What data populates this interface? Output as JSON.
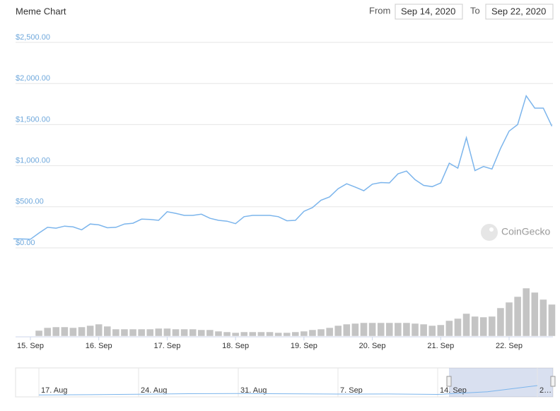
{
  "range_selector": {
    "from_label": "From",
    "from_value": "Sep 14, 2020",
    "to_label": "To",
    "to_value": "Sep 22, 2020"
  },
  "watermark": "CoinGecko",
  "chart_data": [
    {
      "type": "line",
      "title": "Meme Chart",
      "categories": [
        null,
        null,
        "15. Sep",
        null,
        null,
        null,
        null,
        null,
        null,
        null,
        "16. Sep",
        null,
        null,
        null,
        null,
        null,
        null,
        null,
        "17. Sep",
        null,
        null,
        null,
        null,
        null,
        null,
        null,
        "18. Sep",
        null,
        null,
        null,
        null,
        null,
        null,
        null,
        "19. Sep",
        null,
        null,
        null,
        null,
        null,
        null,
        null,
        "20. Sep",
        null,
        null,
        null,
        null,
        null,
        null,
        null,
        "21. Sep",
        null,
        null,
        null,
        null,
        null,
        null,
        null,
        "22. Sep",
        null,
        null,
        null,
        null,
        null
      ],
      "values": [
        110,
        108,
        105,
        180,
        250,
        240,
        265,
        255,
        220,
        290,
        280,
        245,
        250,
        290,
        300,
        350,
        345,
        335,
        440,
        420,
        395,
        395,
        410,
        360,
        335,
        325,
        295,
        380,
        395,
        395,
        395,
        380,
        330,
        335,
        445,
        490,
        580,
        620,
        720,
        780,
        740,
        695,
        775,
        795,
        790,
        900,
        935,
        830,
        760,
        745,
        790,
        1030,
        970,
        1340,
        940,
        990,
        960,
        1210,
        1420,
        1500,
        1850,
        1700,
        1700,
        1480
      ],
      "color": "#7cb5ec",
      "ylim": [
        0,
        2500
      ],
      "yticks": [
        {
          "value": 0,
          "label": "$0.00"
        },
        {
          "value": 500,
          "label": "$500.00"
        },
        {
          "value": 1000,
          "label": "$1,000.00"
        },
        {
          "value": 1500,
          "label": "$1,500.00"
        },
        {
          "value": 2000,
          "label": "$2,000.00"
        },
        {
          "value": 2500,
          "label": "$2,500.00"
        }
      ],
      "grid": true
    },
    {
      "type": "bar",
      "values": [
        0,
        0,
        0,
        8,
        12,
        13,
        13,
        12,
        13,
        15,
        17,
        14,
        10,
        10,
        10,
        10,
        10,
        11,
        11,
        10,
        10,
        10,
        9,
        9,
        7,
        6,
        5,
        6,
        6,
        6,
        6,
        5,
        5,
        6,
        7,
        9,
        10,
        12,
        15,
        17,
        18,
        19,
        19,
        19,
        19,
        19,
        19,
        18,
        17,
        15,
        16,
        22,
        25,
        32,
        28,
        27,
        28,
        40,
        48,
        56,
        68,
        62,
        52,
        45
      ],
      "color": "#c4c4c4",
      "ylim": [
        0,
        80
      ]
    },
    {
      "type": "line",
      "categories": [
        "17. Aug",
        null,
        "24. Aug",
        null,
        "31. Aug",
        null,
        "7. Sep",
        null,
        "14. Sep",
        null,
        "2…"
      ],
      "values": [
        60,
        80,
        120,
        180,
        200,
        170,
        140,
        150,
        110,
        380,
        1000
      ],
      "color": "#7cb5ec",
      "ylim": [
        0,
        2500
      ]
    }
  ]
}
